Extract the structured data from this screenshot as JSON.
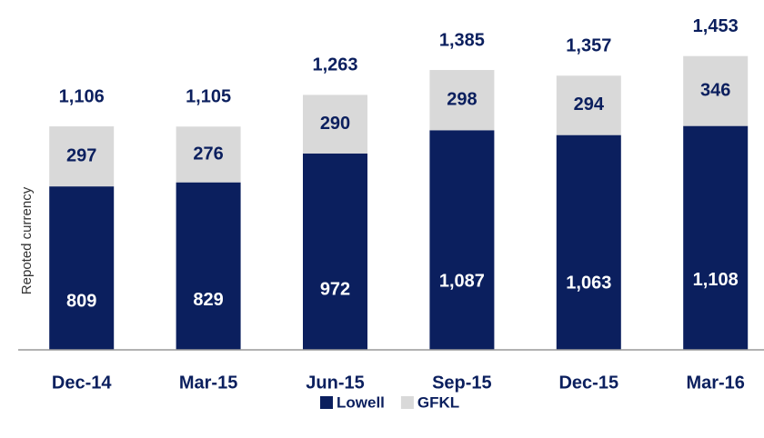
{
  "chart_data": {
    "type": "stacked_bar",
    "y_axis_label": "Repoted currency",
    "categories": [
      "Dec-14",
      "Mar-15",
      "Jun-15",
      "Sep-15",
      "Dec-15",
      "Mar-16"
    ],
    "series": [
      {
        "name": "Lowell",
        "color": "#0b1f5e",
        "values": [
          809,
          829,
          972,
          1087,
          1063,
          1108
        ],
        "value_labels": [
          "809",
          "829",
          "972",
          "1,087",
          "1,063",
          "1,108"
        ]
      },
      {
        "name": "GFKL",
        "color": "#d9d9d9",
        "values": [
          297,
          276,
          290,
          298,
          294,
          346
        ]
      }
    ],
    "totals": [
      1106,
      1105,
      1263,
      1385,
      1357,
      1453
    ],
    "total_labels": [
      "1,106",
      "1,105",
      "1,263",
      "1,385",
      "1,357",
      "1,453"
    ],
    "ylim": [
      0,
      1700
    ]
  }
}
